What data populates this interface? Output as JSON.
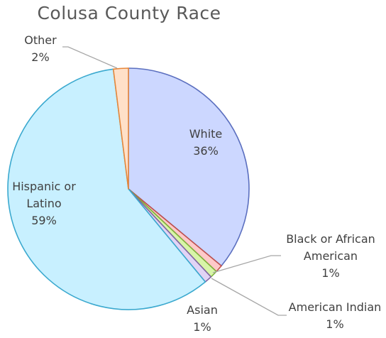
{
  "chart_data": {
    "type": "pie",
    "title": "Colusa County Race",
    "slices": [
      {
        "name": "White",
        "value": 36,
        "label_lines": [
          "White",
          "36%"
        ],
        "fill": "#ccd7ff",
        "stroke": "#5b6fbf"
      },
      {
        "name": "Black or African American",
        "value": 1,
        "label_lines": [
          "Black or African",
          "American",
          "1%"
        ],
        "fill": "#ffc9c9",
        "stroke": "#c0504d"
      },
      {
        "name": "American Indian",
        "value": 1,
        "label_lines": [
          "American Indian",
          "1%"
        ],
        "fill": "#d8f5a8",
        "stroke": "#7fb23c"
      },
      {
        "name": "Asian",
        "value": 1,
        "label_lines": [
          "Asian",
          "1%"
        ],
        "fill": "#e1d4f5",
        "stroke": "#8064a2"
      },
      {
        "name": "Hispanic or Latino",
        "value": 59,
        "label_lines": [
          "Hispanic or",
          "Latino",
          "59%"
        ],
        "fill": "#c8f0ff",
        "stroke": "#3ba9cf"
      },
      {
        "name": "Other",
        "value": 2,
        "label_lines": [
          "Other",
          "2%"
        ],
        "fill": "#ffe0c8",
        "stroke": "#e8873a"
      }
    ]
  }
}
